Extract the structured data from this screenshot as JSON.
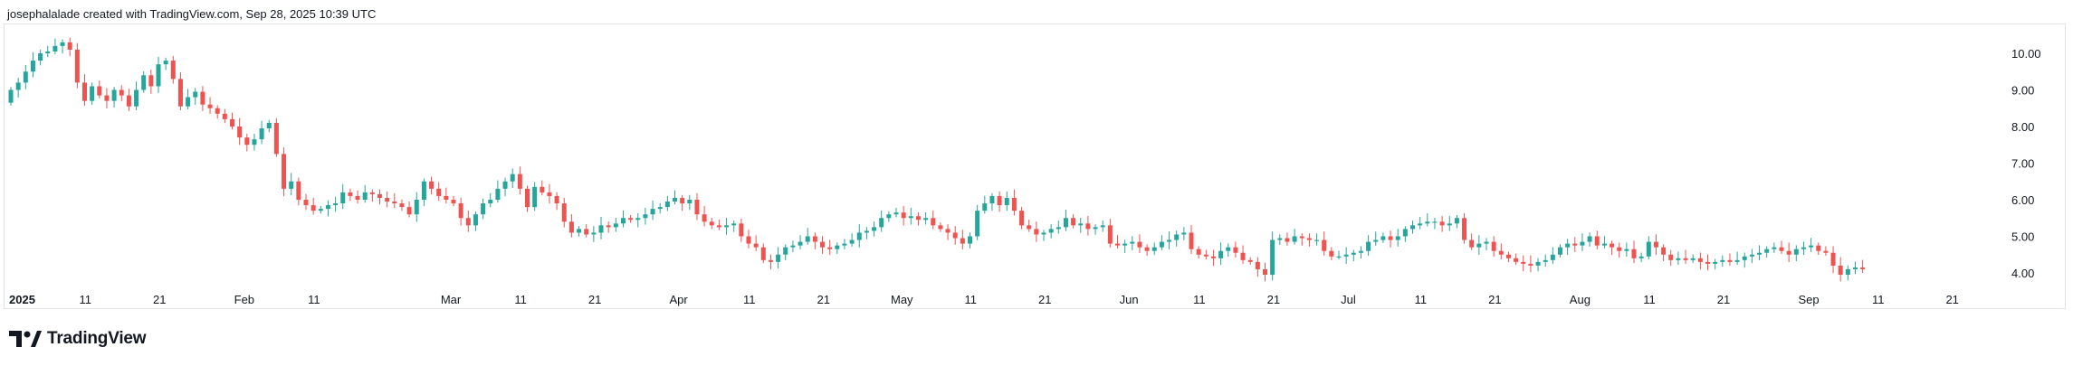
{
  "header": {
    "caption": "josephalalade created with TradingView.com, Sep 28, 2025 10:39 UTC"
  },
  "brand": {
    "name": "TradingView",
    "icon": "tradingview-logo-icon"
  },
  "colors": {
    "up": "#26a69a",
    "down": "#ef5350",
    "border": "#e0e3eb",
    "text": "#131722"
  },
  "chart_data": {
    "type": "candlestick",
    "title": "",
    "xlabel": "",
    "ylabel": "",
    "y_ticks": [
      "10.00",
      "9.00",
      "8.00",
      "7.00",
      "6.00",
      "5.00",
      "4.00"
    ],
    "ylim": [
      3.75,
      10.7
    ],
    "x_ticks": [
      {
        "label": "2025",
        "day": 0,
        "bold": true
      },
      {
        "label": "11",
        "day": 10
      },
      {
        "label": "21",
        "day": 20
      },
      {
        "label": "Feb",
        "day": 31
      },
      {
        "label": "11",
        "day": 41
      },
      {
        "label": "Mar",
        "day": 59
      },
      {
        "label": "11",
        "day": 69
      },
      {
        "label": "21",
        "day": 79
      },
      {
        "label": "Apr",
        "day": 90
      },
      {
        "label": "11",
        "day": 100
      },
      {
        "label": "21",
        "day": 110
      },
      {
        "label": "May",
        "day": 120
      },
      {
        "label": "11",
        "day": 130
      },
      {
        "label": "21",
        "day": 140
      },
      {
        "label": "Jun",
        "day": 151
      },
      {
        "label": "11",
        "day": 161
      },
      {
        "label": "21",
        "day": 171
      },
      {
        "label": "Jul",
        "day": 181
      },
      {
        "label": "11",
        "day": 191
      },
      {
        "label": "21",
        "day": 201
      },
      {
        "label": "Aug",
        "day": 212
      },
      {
        "label": "11",
        "day": 222
      },
      {
        "label": "21",
        "day": 232
      },
      {
        "label": "Sep",
        "day": 243
      },
      {
        "label": "11",
        "day": 253
      },
      {
        "label": "21",
        "day": 263
      }
    ],
    "closes": [
      9.0,
      9.2,
      9.5,
      9.8,
      10.0,
      10.05,
      10.2,
      10.3,
      10.1,
      9.2,
      8.7,
      9.1,
      8.85,
      8.7,
      9.0,
      8.85,
      8.55,
      9.0,
      9.4,
      9.1,
      9.7,
      9.8,
      9.3,
      8.55,
      8.8,
      8.95,
      8.6,
      8.5,
      8.35,
      8.2,
      8.0,
      7.7,
      7.5,
      7.65,
      7.95,
      8.1,
      7.25,
      6.3,
      6.5,
      6.0,
      5.85,
      5.7,
      5.75,
      5.85,
      5.9,
      6.2,
      6.1,
      6.0,
      6.2,
      6.15,
      6.05,
      5.95,
      5.9,
      5.8,
      5.6,
      6.0,
      6.5,
      6.3,
      6.1,
      6.0,
      5.9,
      5.5,
      5.3,
      5.6,
      5.9,
      6.0,
      6.3,
      6.5,
      6.7,
      6.3,
      5.8,
      6.35,
      6.2,
      6.1,
      5.9,
      5.4,
      5.1,
      5.2,
      5.05,
      5.1,
      5.3,
      5.25,
      5.35,
      5.5,
      5.45,
      5.5,
      5.6,
      5.75,
      5.8,
      5.95,
      6.05,
      5.9,
      6.0,
      5.6,
      5.4,
      5.3,
      5.25,
      5.3,
      5.35,
      5.0,
      4.8,
      4.7,
      4.35,
      4.3,
      4.5,
      4.7,
      4.75,
      4.85,
      5.0,
      4.85,
      4.7,
      4.65,
      4.75,
      4.8,
      4.9,
      5.1,
      5.15,
      5.25,
      5.5,
      5.6,
      5.65,
      5.5,
      5.55,
      5.45,
      5.5,
      5.3,
      5.2,
      5.1,
      4.95,
      4.8,
      5.0,
      5.7,
      5.9,
      6.1,
      5.85,
      6.05,
      5.7,
      5.3,
      5.2,
      5.05,
      5.1,
      5.2,
      5.25,
      5.5,
      5.3,
      5.35,
      5.2,
      5.25,
      5.3,
      4.8,
      4.75,
      4.8,
      4.85,
      4.7,
      4.6,
      4.7,
      4.85,
      4.9,
      5.05,
      5.1,
      4.65,
      4.5,
      4.45,
      4.4,
      4.6,
      4.7,
      4.55,
      4.35,
      4.3,
      4.1,
      3.95,
      4.9,
      4.95,
      4.85,
      5.0,
      4.95,
      4.9,
      4.9,
      4.6,
      4.45,
      4.45,
      4.5,
      4.55,
      4.6,
      4.85,
      4.9,
      5.0,
      4.9,
      5.0,
      5.2,
      5.3,
      5.35,
      5.4,
      5.4,
      5.3,
      5.35,
      5.5,
      4.9,
      4.7,
      4.8,
      4.85,
      4.6,
      4.5,
      4.4,
      4.3,
      4.25,
      4.2,
      4.3,
      4.35,
      4.5,
      4.7,
      4.8,
      4.75,
      4.85,
      5.0,
      4.75,
      4.8,
      4.7,
      4.6,
      4.65,
      4.4,
      4.45,
      4.85,
      4.7,
      4.5,
      4.35,
      4.4,
      4.35,
      4.4,
      4.3,
      4.25,
      4.3,
      4.35,
      4.3,
      4.35,
      4.45,
      4.5,
      4.55,
      4.65,
      4.7,
      4.6,
      4.5,
      4.65,
      4.7,
      4.75,
      4.6,
      4.55,
      4.2,
      3.95,
      4.1,
      4.15,
      4.1
    ]
  }
}
